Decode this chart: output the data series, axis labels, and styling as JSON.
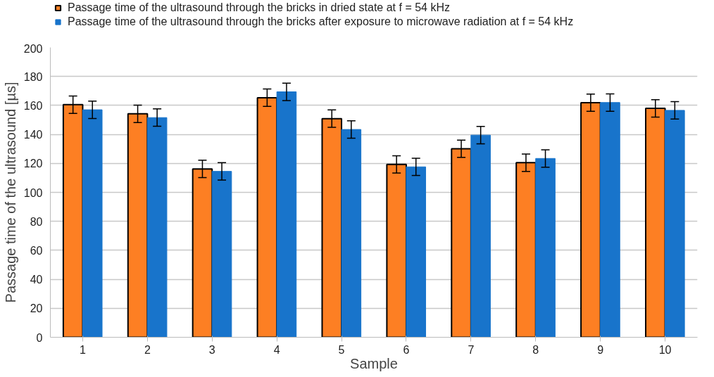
{
  "chart_data": {
    "type": "bar",
    "xlabel": "Sample",
    "ylabel": "Passage time of the ultrasound [µs]",
    "categories": [
      "1",
      "2",
      "3",
      "4",
      "5",
      "6",
      "7",
      "8",
      "9",
      "10"
    ],
    "series": [
      {
        "name": "Passage time of the ultrasound through the bricks in dried state at f = 54 kHz",
        "color": "#fd7f23",
        "values": [
          160.5,
          154.2,
          116.2,
          165.3,
          150.9,
          119.3,
          130.1,
          120.5,
          161.9,
          158
        ],
        "errors": [
          6,
          6,
          6,
          6,
          6,
          6,
          6,
          6,
          6,
          6
        ]
      },
      {
        "name": "Passage time of the ultrasound through the bricks after exposure to microwave radiation at f = 54 kHz",
        "color": "#1874cb",
        "values": [
          157,
          151.6,
          114.5,
          169.4,
          143.4,
          117.6,
          139.5,
          123.4,
          162,
          156.6
        ],
        "errors": [
          6,
          6,
          6,
          6,
          6,
          6,
          6,
          6,
          6,
          6
        ]
      }
    ],
    "ylim": [
      0,
      200
    ],
    "yticks": [
      0,
      20,
      40,
      60,
      80,
      100,
      120,
      140,
      160,
      180,
      200
    ],
    "grid": "y",
    "legend": "top"
  }
}
